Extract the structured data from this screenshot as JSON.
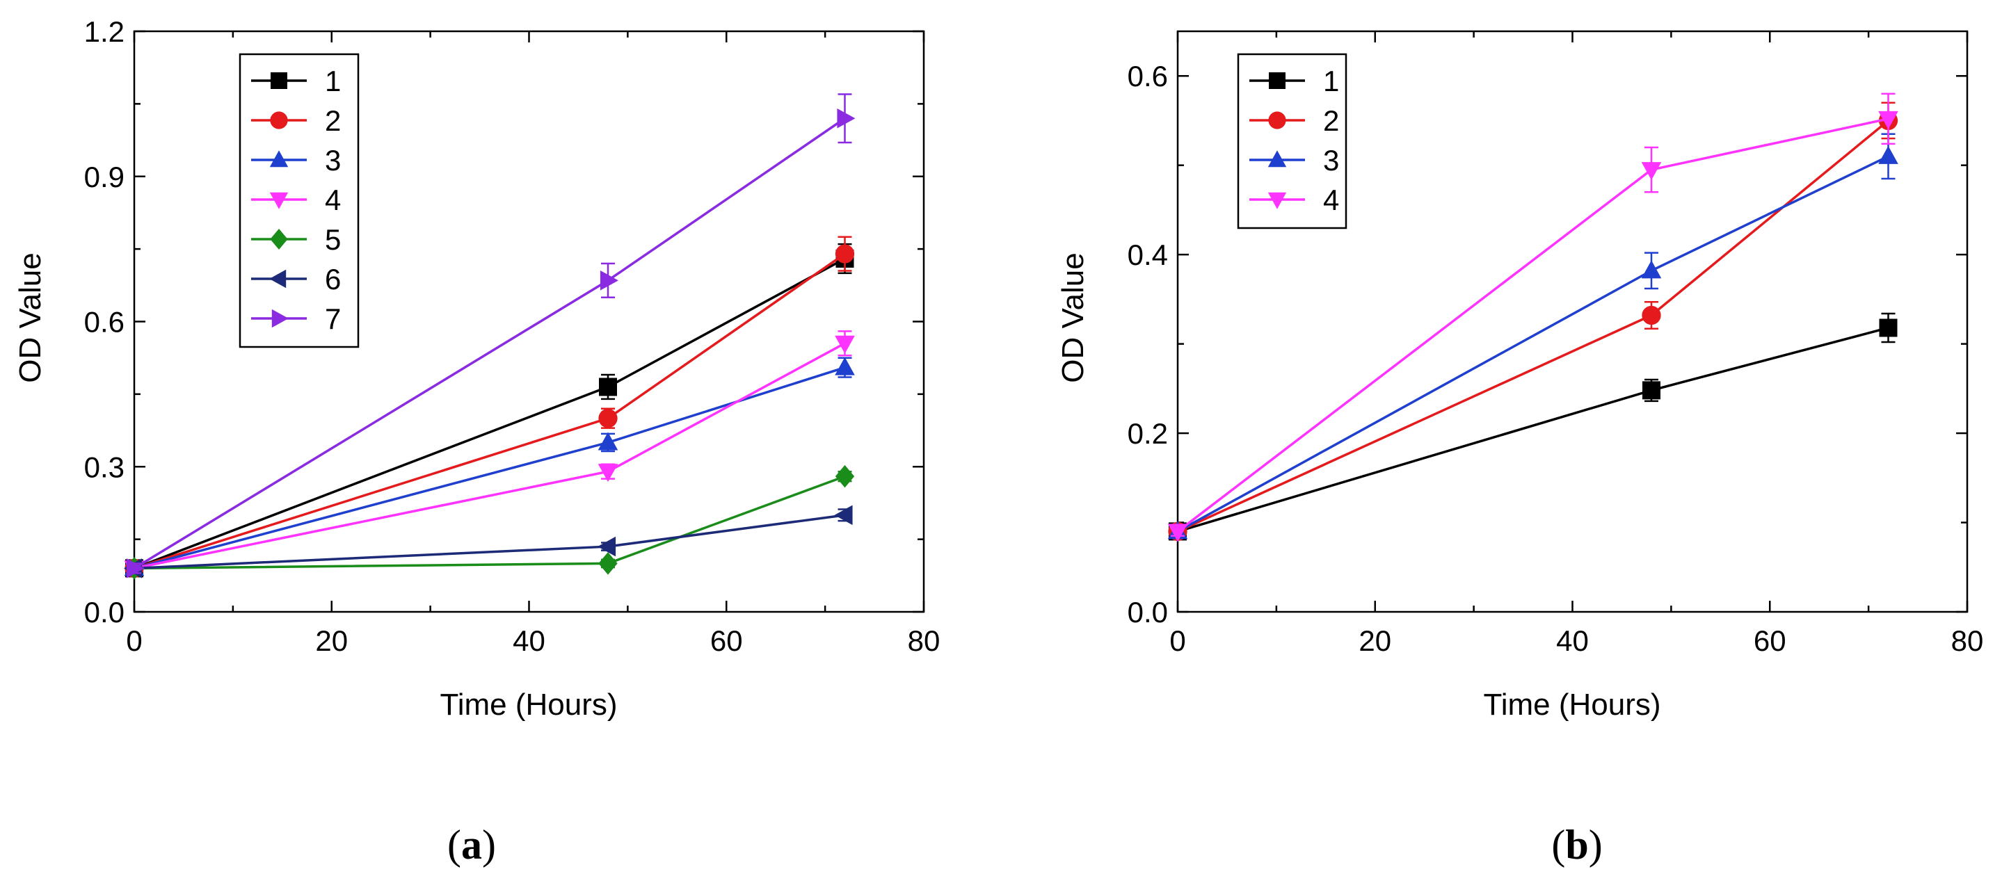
{
  "chart_data": [
    {
      "type": "line",
      "panel_label": {
        "open": "(",
        "letter": "a",
        "close": ")"
      },
      "xlabel": "Time (Hours)",
      "ylabel": "OD Value",
      "xlim": [
        0,
        80
      ],
      "ylim": [
        0,
        1.2
      ],
      "xticks": [
        0,
        20,
        40,
        60,
        80
      ],
      "yticks": [
        0,
        0.3,
        0.6,
        0.9,
        1.2
      ],
      "xtick_labels": [
        "0",
        "20",
        "40",
        "60",
        "80"
      ],
      "ytick_labels": [
        "0.0",
        "0.3",
        "0.6",
        "0.9",
        "1.2"
      ],
      "grid": false,
      "legend_position": "top-left",
      "x": [
        0,
        48,
        72
      ],
      "series": [
        {
          "name": "1",
          "color": "#000000",
          "marker": "square",
          "values": [
            0.09,
            0.465,
            0.73
          ],
          "errors": [
            0.01,
            0.025,
            0.03
          ]
        },
        {
          "name": "2",
          "color": "#e41a1c",
          "marker": "circle",
          "values": [
            0.09,
            0.4,
            0.74
          ],
          "errors": [
            0.01,
            0.02,
            0.035
          ]
        },
        {
          "name": "3",
          "color": "#1f3fcf",
          "marker": "triangle-up",
          "values": [
            0.09,
            0.35,
            0.505
          ],
          "errors": [
            0.01,
            0.018,
            0.02
          ]
        },
        {
          "name": "4",
          "color": "#ff33ff",
          "marker": "triangle-down",
          "values": [
            0.09,
            0.29,
            0.555
          ],
          "errors": [
            0.01,
            0.015,
            0.025
          ]
        },
        {
          "name": "5",
          "color": "#1a8c1a",
          "marker": "diamond",
          "values": [
            0.09,
            0.1,
            0.28
          ],
          "errors": [
            0.005,
            0.008,
            0.01
          ]
        },
        {
          "name": "6",
          "color": "#1c2a78",
          "marker": "triangle-left",
          "values": [
            0.09,
            0.135,
            0.2
          ],
          "errors": [
            0.005,
            0.008,
            0.012
          ]
        },
        {
          "name": "7",
          "color": "#8a2be2",
          "marker": "triangle-right",
          "values": [
            0.09,
            0.685,
            1.02
          ],
          "errors": [
            0.01,
            0.035,
            0.05
          ]
        }
      ]
    },
    {
      "type": "line",
      "panel_label": {
        "open": "(",
        "letter": "b",
        "close": ")"
      },
      "xlabel": "Time (Hours)",
      "ylabel": "OD Value",
      "xlim": [
        0,
        80
      ],
      "ylim": [
        0,
        0.65
      ],
      "xticks": [
        0,
        20,
        40,
        60,
        80
      ],
      "yticks": [
        0,
        0.2,
        0.4,
        0.6
      ],
      "xtick_labels": [
        "0",
        "20",
        "40",
        "60",
        "80"
      ],
      "ytick_labels": [
        "0.0",
        "0.2",
        "0.4",
        "0.6"
      ],
      "grid": false,
      "legend_position": "top-left",
      "x": [
        0,
        48,
        72
      ],
      "series": [
        {
          "name": "1",
          "color": "#000000",
          "marker": "square",
          "values": [
            0.09,
            0.248,
            0.318
          ],
          "errors": [
            0.005,
            0.012,
            0.016
          ]
        },
        {
          "name": "2",
          "color": "#e41a1c",
          "marker": "circle",
          "values": [
            0.09,
            0.332,
            0.55
          ],
          "errors": [
            0.005,
            0.015,
            0.02
          ]
        },
        {
          "name": "3",
          "color": "#1f3fcf",
          "marker": "triangle-up",
          "values": [
            0.09,
            0.382,
            0.51
          ],
          "errors": [
            0.005,
            0.02,
            0.025
          ]
        },
        {
          "name": "4",
          "color": "#ff33ff",
          "marker": "triangle-down",
          "values": [
            0.09,
            0.495,
            0.552
          ],
          "errors": [
            0.005,
            0.025,
            0.028
          ]
        }
      ]
    }
  ]
}
